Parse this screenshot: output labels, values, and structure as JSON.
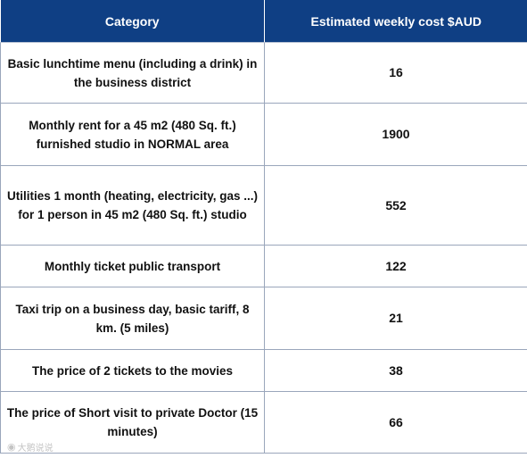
{
  "table": {
    "headers": [
      "Category",
      "Estimated weekly cost $AUD"
    ],
    "rows": [
      {
        "category": "Basic lunchtime menu (including a drink) in the business district",
        "cost": "16"
      },
      {
        "category": "Monthly rent for a 45 m2 (480 Sq. ft.) furnished studio in NORMAL area",
        "cost": "1900"
      },
      {
        "category": "Utilities 1 month (heating, electricity, gas ...) for 1 person in 45 m2 (480 Sq. ft.) studio",
        "cost": "552"
      },
      {
        "category": "Monthly ticket public transport",
        "cost": "122"
      },
      {
        "category": "Taxi trip on a business day, basic tariff, 8 km. (5 miles)",
        "cost": "21"
      },
      {
        "category": "The price of 2 tickets to the movies",
        "cost": "38"
      },
      {
        "category": "The price of Short visit to private Doctor (15 minutes)",
        "cost": "66"
      }
    ]
  },
  "watermark": {
    "text": "大鹅说说",
    "icon": "weibo-logo-icon"
  }
}
